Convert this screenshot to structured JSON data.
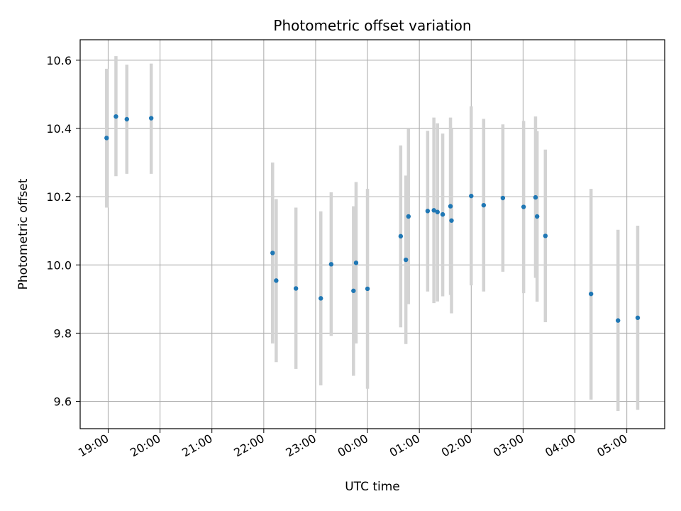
{
  "chart_data": {
    "type": "scatter",
    "title": "Photometric offset variation",
    "xlabel": "UTC time",
    "ylabel": "Photometric offset",
    "x_unit": "UTC time of day (hours past midnight on the first night; values above 24 fall on the following day)",
    "xlim": [
      18.46,
      29.73
    ],
    "ylim": [
      9.52,
      10.66
    ],
    "grid": true,
    "x_ticks": [
      {
        "value": 19,
        "label": "19:00"
      },
      {
        "value": 20,
        "label": "20:00"
      },
      {
        "value": 21,
        "label": "21:00"
      },
      {
        "value": 22,
        "label": "22:00"
      },
      {
        "value": 23,
        "label": "23:00"
      },
      {
        "value": 24,
        "label": "00:00"
      },
      {
        "value": 25,
        "label": "01:00"
      },
      {
        "value": 26,
        "label": "02:00"
      },
      {
        "value": 27,
        "label": "03:00"
      },
      {
        "value": 28,
        "label": "04:00"
      },
      {
        "value": 29,
        "label": "05:00"
      }
    ],
    "y_ticks": [
      {
        "value": 9.6,
        "label": "9.6"
      },
      {
        "value": 9.8,
        "label": "9.8"
      },
      {
        "value": 10.0,
        "label": "10.0"
      },
      {
        "value": 10.2,
        "label": "10.2"
      },
      {
        "value": 10.4,
        "label": "10.4"
      },
      {
        "value": 10.6,
        "label": "10.6"
      }
    ],
    "colors": {
      "points": "#1f77b4",
      "errorbars": "#d3d3d3",
      "grid": "#b0b0b0"
    },
    "points": [
      {
        "x": 18.97,
        "y": 10.372,
        "lo": 10.168,
        "hi": 10.575
      },
      {
        "x": 19.15,
        "y": 10.435,
        "lo": 10.26,
        "hi": 10.612
      },
      {
        "x": 19.36,
        "y": 10.427,
        "lo": 10.267,
        "hi": 10.587
      },
      {
        "x": 19.83,
        "y": 10.43,
        "lo": 10.267,
        "hi": 10.59
      },
      {
        "x": 22.17,
        "y": 10.035,
        "lo": 9.77,
        "hi": 10.3
      },
      {
        "x": 22.24,
        "y": 9.954,
        "lo": 9.715,
        "hi": 10.193
      },
      {
        "x": 22.62,
        "y": 9.931,
        "lo": 9.695,
        "hi": 10.168
      },
      {
        "x": 23.1,
        "y": 9.902,
        "lo": 9.647,
        "hi": 10.157
      },
      {
        "x": 23.3,
        "y": 10.002,
        "lo": 9.792,
        "hi": 10.213
      },
      {
        "x": 23.73,
        "y": 9.924,
        "lo": 9.675,
        "hi": 10.172
      },
      {
        "x": 23.78,
        "y": 10.006,
        "lo": 9.77,
        "hi": 10.243
      },
      {
        "x": 24.0,
        "y": 9.93,
        "lo": 9.637,
        "hi": 10.223
      },
      {
        "x": 24.64,
        "y": 10.084,
        "lo": 9.817,
        "hi": 10.35
      },
      {
        "x": 24.74,
        "y": 10.015,
        "lo": 9.768,
        "hi": 10.262
      },
      {
        "x": 24.79,
        "y": 10.142,
        "lo": 9.885,
        "hi": 10.4
      },
      {
        "x": 25.16,
        "y": 10.158,
        "lo": 9.922,
        "hi": 10.393
      },
      {
        "x": 25.28,
        "y": 10.16,
        "lo": 9.888,
        "hi": 10.432
      },
      {
        "x": 25.35,
        "y": 10.155,
        "lo": 9.893,
        "hi": 10.415
      },
      {
        "x": 25.45,
        "y": 10.148,
        "lo": 9.908,
        "hi": 10.385
      },
      {
        "x": 25.6,
        "y": 10.172,
        "lo": 9.912,
        "hi": 10.432
      },
      {
        "x": 25.62,
        "y": 10.13,
        "lo": 9.858,
        "hi": 10.4
      },
      {
        "x": 26.0,
        "y": 10.202,
        "lo": 9.94,
        "hi": 10.465
      },
      {
        "x": 26.24,
        "y": 10.175,
        "lo": 9.922,
        "hi": 10.428
      },
      {
        "x": 26.61,
        "y": 10.196,
        "lo": 9.98,
        "hi": 10.412
      },
      {
        "x": 27.01,
        "y": 10.17,
        "lo": 9.917,
        "hi": 10.422
      },
      {
        "x": 27.24,
        "y": 10.198,
        "lo": 9.962,
        "hi": 10.435
      },
      {
        "x": 27.27,
        "y": 10.142,
        "lo": 9.892,
        "hi": 10.392
      },
      {
        "x": 27.43,
        "y": 10.085,
        "lo": 9.832,
        "hi": 10.338
      },
      {
        "x": 28.31,
        "y": 9.915,
        "lo": 9.605,
        "hi": 10.223
      },
      {
        "x": 28.83,
        "y": 9.837,
        "lo": 9.572,
        "hi": 10.103
      },
      {
        "x": 29.21,
        "y": 9.845,
        "lo": 9.575,
        "hi": 10.115
      }
    ]
  }
}
